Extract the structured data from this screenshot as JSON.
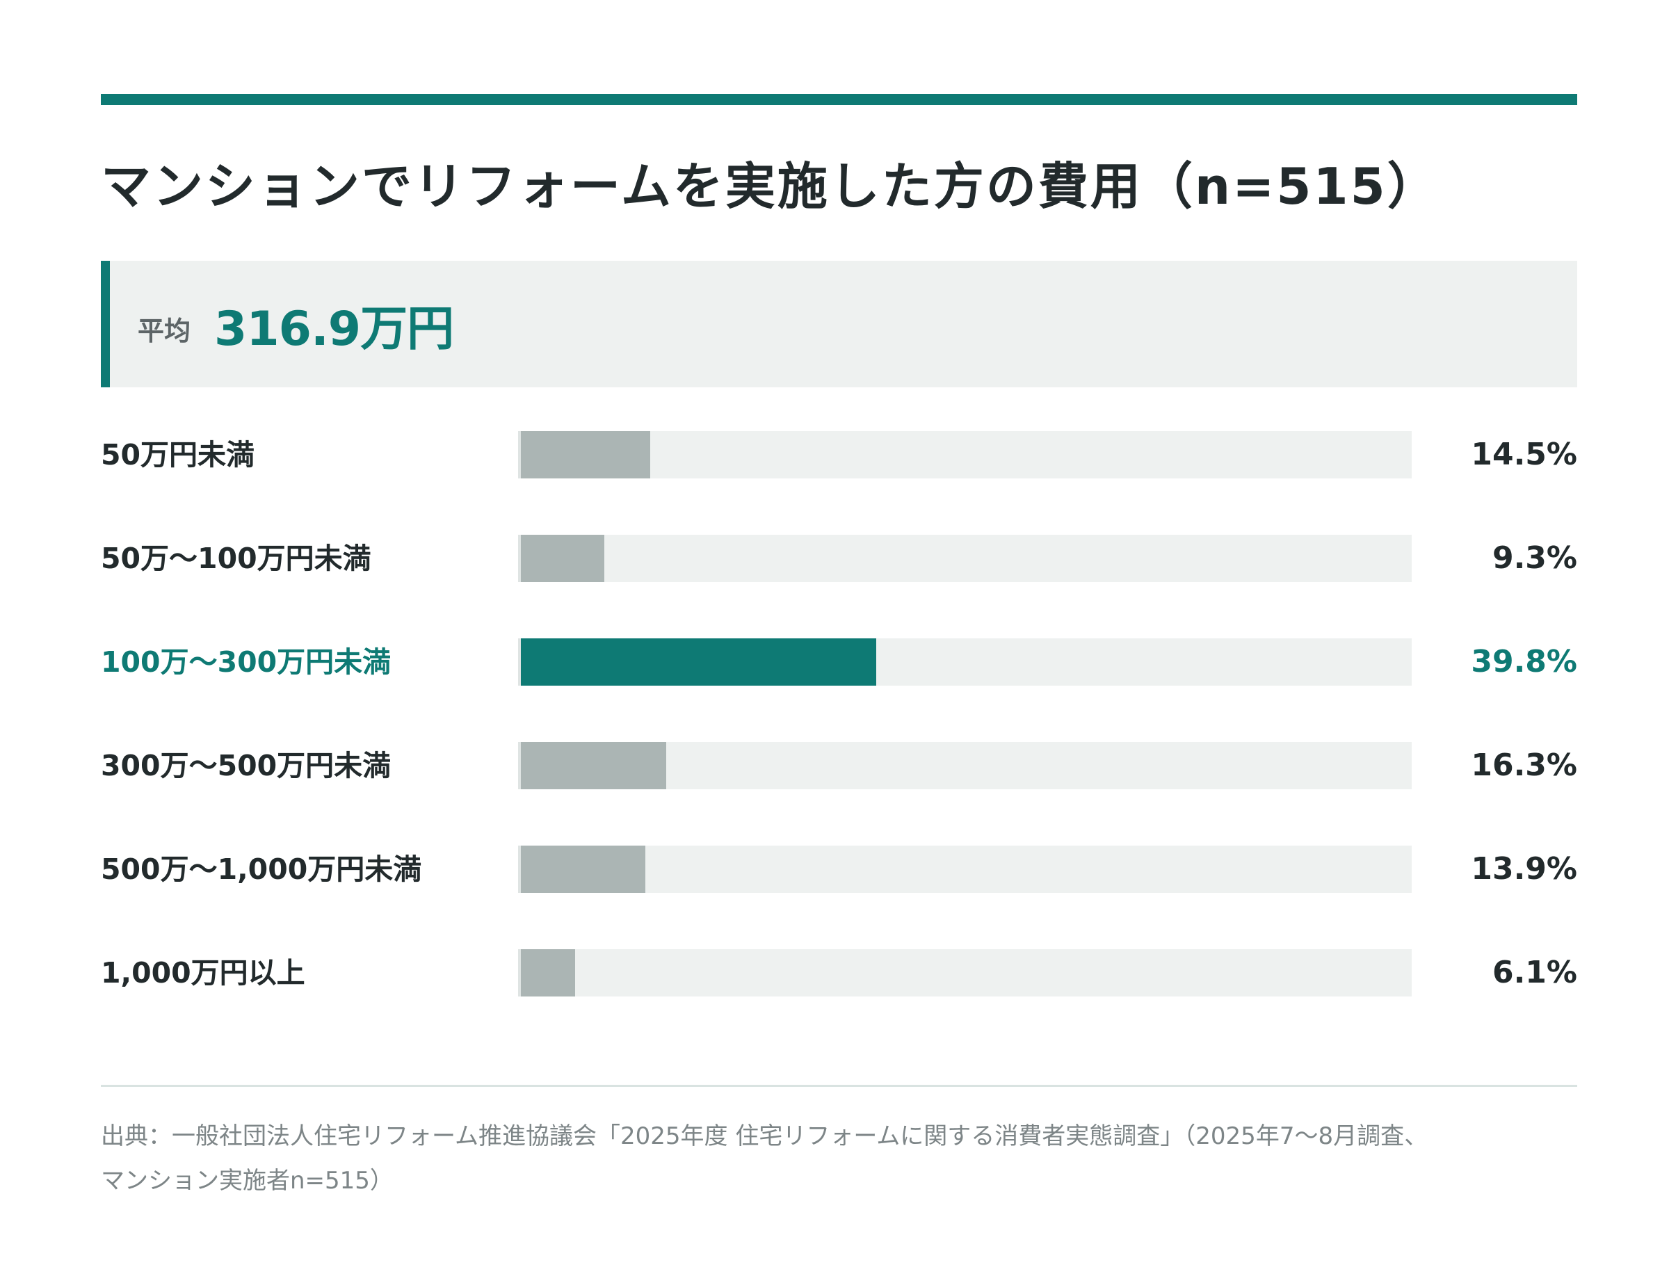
{
  "title": "マンションでリフォームを実施した方の費用（n=515）",
  "average": {
    "label": "平均",
    "value": "316.9万円"
  },
  "colors": {
    "accent": "#0e7a74",
    "bar": "#abb5b4",
    "track": "#eef1f0",
    "text": "#222a2c"
  },
  "chart_data": {
    "type": "bar",
    "orientation": "horizontal",
    "categories": [
      "50万円未満",
      "50万〜100万円未満",
      "100万〜300万円未満",
      "300万〜500万円未満",
      "500万〜1,000万円未満",
      "1,000万円以上"
    ],
    "values": [
      14.5,
      9.3,
      39.8,
      16.3,
      13.9,
      6.1
    ],
    "value_labels": [
      "14.5%",
      "9.3%",
      "39.8%",
      "16.3%",
      "13.9%",
      "6.1%"
    ],
    "highlight_index": 2,
    "xlim": [
      0,
      100
    ],
    "unit": "%"
  },
  "source": {
    "line1": "出典：一般社団法人住宅リフォーム推進協議会「2025年度 住宅リフォームに関する消費者実態調査」（2025年7〜8月調査、",
    "line2": "マンション実施者n=515）"
  }
}
